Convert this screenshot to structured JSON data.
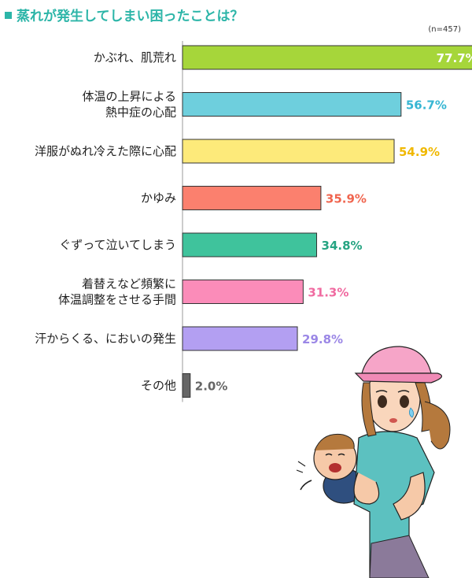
{
  "chart_data": {
    "type": "bar",
    "orientation": "horizontal",
    "title": "蒸れが発生してしまい困ったことは？",
    "sample_note": "(n=457)",
    "unit": "%",
    "categories": [
      [
        "かぶれ、肌荒れ"
      ],
      [
        "体温の上昇による",
        "熱中症の心配"
      ],
      [
        "洋服がぬれ冷えた際に心配"
      ],
      [
        "かゆみ"
      ],
      [
        "ぐずって泣いてしまう"
      ],
      [
        "着替えなど頻繁に",
        "体温調整をさせる手間"
      ],
      [
        "汗からくる、においの発生"
      ],
      [
        "その他"
      ]
    ],
    "values": [
      77.7,
      56.7,
      54.9,
      35.9,
      34.8,
      31.3,
      29.8,
      2.0
    ],
    "bar_colors": [
      "#a6d63a",
      "#6ecfdd",
      "#fdea7a",
      "#fb806e",
      "#3fc39c",
      "#fb8cb9",
      "#b39ff2",
      "#666666"
    ],
    "label_colors": [
      "#ffffff",
      "#36b6d3",
      "#f0b800",
      "#f0654f",
      "#26a482",
      "#f06aa0",
      "#9b87e6",
      "#666666"
    ],
    "xlim": [
      0,
      80
    ],
    "grid": false
  },
  "illustration": "mother-holding-crying-baby-icon"
}
